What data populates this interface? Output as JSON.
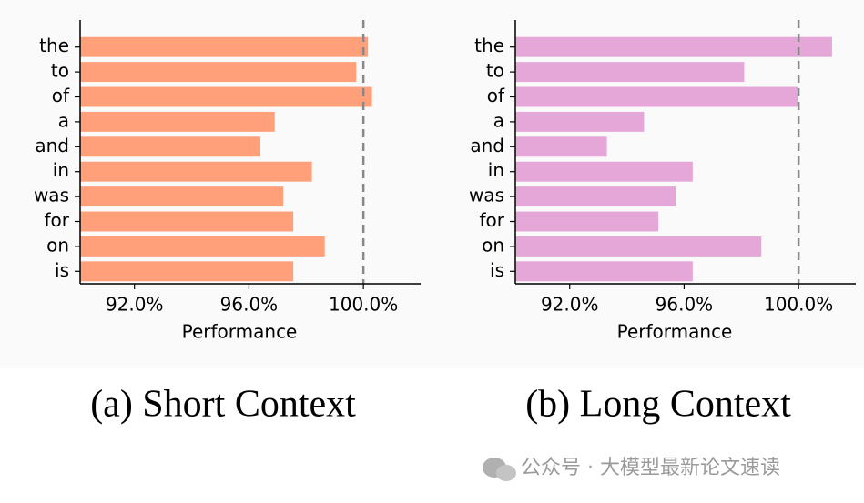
{
  "chart_data": [
    {
      "type": "barh",
      "caption": "(a) Short Context",
      "xlabel": "Performance",
      "categories": [
        "the",
        "to",
        "of",
        "a",
        "and",
        "in",
        "was",
        "for",
        "on",
        "is"
      ],
      "values": [
        100.16,
        99.75,
        100.3,
        96.9,
        96.4,
        98.2,
        97.2,
        97.55,
        98.65,
        97.55
      ],
      "color": "#ffa07a",
      "xlim": [
        90.1,
        102
      ],
      "xticks": [
        {
          "value": 92,
          "label": "92.0%"
        },
        {
          "value": 96,
          "label": "96.0%"
        },
        {
          "value": 100,
          "label": "100.0%"
        }
      ],
      "reference_line": 100
    },
    {
      "type": "barh",
      "caption": "(b) Long Context",
      "xlabel": "Performance",
      "categories": [
        "the",
        "to",
        "of",
        "a",
        "and",
        "in",
        "was",
        "for",
        "on",
        "is"
      ],
      "values": [
        101.17,
        98.1,
        99.97,
        94.6,
        93.3,
        96.3,
        95.7,
        95.1,
        98.7,
        96.3
      ],
      "color": "#e5a6d8",
      "xlim": [
        90.1,
        102
      ],
      "xticks": [
        {
          "value": 92,
          "label": "92.0%"
        },
        {
          "value": 96,
          "label": "96.0%"
        },
        {
          "value": 100,
          "label": "100.0%"
        }
      ],
      "reference_line": 100
    }
  ],
  "watermark": "公众号 · 大模型最新论文速读"
}
